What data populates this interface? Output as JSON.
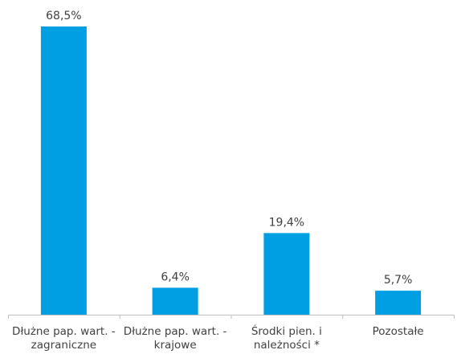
{
  "chart_data": {
    "type": "bar",
    "categories": [
      [
        "Dłużne pap. wart. -",
        "zagraniczne"
      ],
      [
        "Dłużne pap. wart. -",
        "krajowe"
      ],
      [
        "Środki pien. i",
        "należności *"
      ],
      [
        "Pozostałe"
      ]
    ],
    "values": [
      68.5,
      6.4,
      19.4,
      5.7
    ],
    "data_labels": [
      "68,5%",
      "6,4%",
      "19,4%",
      "5,7%"
    ],
    "title": "",
    "xlabel": "",
    "ylabel": "",
    "ylim": [
      0,
      68.5
    ],
    "grid": false,
    "legend": "none",
    "bar_color": "#009fe3",
    "axis_color": "#bfbfbf",
    "text_color": "#404040"
  }
}
